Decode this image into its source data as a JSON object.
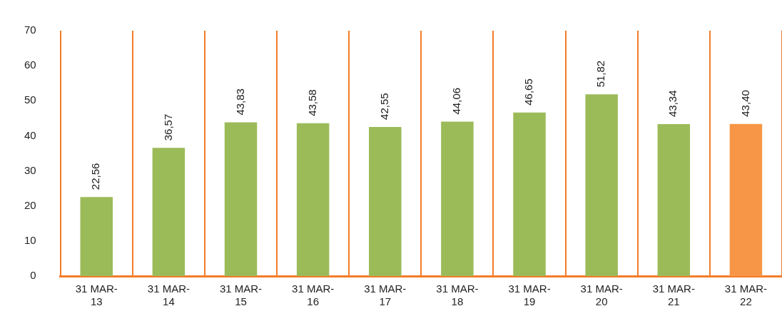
{
  "chart_data": {
    "type": "bar",
    "categories": [
      "31 MAR-13",
      "31 MAR-14",
      "31 MAR-15",
      "31 MAR-16",
      "31 MAR-17",
      "31 MAR-18",
      "31 MAR-19",
      "31 MAR-20",
      "31 MAR-21",
      "31 MAR-22"
    ],
    "values": [
      22.56,
      36.57,
      43.83,
      43.58,
      42.55,
      44.06,
      46.65,
      51.82,
      43.34,
      43.4
    ],
    "value_labels": [
      "22,56",
      "36,57",
      "43,83",
      "43,58",
      "42,55",
      "44,06",
      "46,65",
      "51,82",
      "43,34",
      "43,40"
    ],
    "colors": [
      "#9bbb59",
      "#9bbb59",
      "#9bbb59",
      "#9bbb59",
      "#9bbb59",
      "#9bbb59",
      "#9bbb59",
      "#9bbb59",
      "#9bbb59",
      "#f79646"
    ],
    "ylim": [
      0,
      70
    ],
    "yticks": [
      0,
      10,
      20,
      30,
      40,
      50,
      60,
      70
    ],
    "grid": "x",
    "legend": false
  }
}
